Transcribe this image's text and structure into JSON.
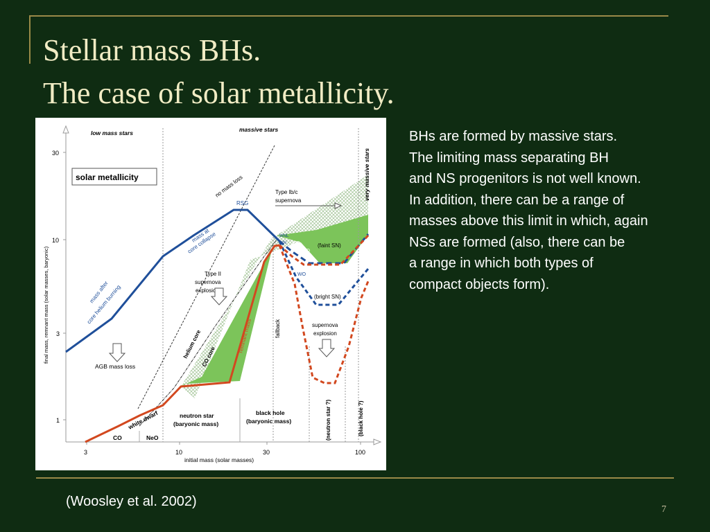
{
  "slide": {
    "title_line1": "Stellar mass BHs.",
    "title_line2": "The case of solar metallicity.",
    "body_lines": [
      "BHs are formed by massive stars.",
      "The limiting mass separating BH",
      "and NS progenitors is not well known.",
      "In addition, there can be a range of",
      "masses above this limit in which, again",
      "NSs are formed (also, there can be",
      "a range in which both types of",
      "compact objects form)."
    ],
    "citation": "(Woosley et al. 2002)",
    "page_number": "7"
  },
  "figure": {
    "region_labels": {
      "low_mass": "low mass stars",
      "massive": "massive stars",
      "very_massive": "very massive stars"
    },
    "legend_box": "solar metallicity",
    "x_axis_label": "initial mass (solar masses)",
    "y_axis_label": "final mass, remnant mass (solar masses, baryonic)",
    "x_ticks": [
      "3",
      "10",
      "30",
      "100"
    ],
    "y_ticks": [
      "1",
      "3",
      "10",
      "30"
    ],
    "curve_labels": {
      "no_mass_loss": "no mass loss",
      "rsg": "RSG",
      "mass_at_core_collapse": [
        "mass at",
        "core collapse"
      ],
      "mass_after_he_burning": [
        "mass after",
        "core helium burning"
      ],
      "helium_core": "helium core",
      "co_core": "CO core",
      "remnant_mass": "remnant mass",
      "white_dwarf": "white dwarf",
      "wnl": "WNL",
      "wn": "WN",
      "wc": "WC",
      "wo_top": "WO",
      "wo_mid": "WO"
    },
    "annotations": {
      "type_ibc": [
        "Type Ib/c",
        "supernova"
      ],
      "type_ii": [
        "Type II",
        "supernova",
        "explosion"
      ],
      "agb_mass_loss": "AGB mass loss",
      "faint_sn": "(faint SN)",
      "bright_sn": "(bright SN)",
      "supernova_explosion": [
        "supernova",
        "explosion"
      ],
      "fallback": "fallback",
      "co": "CO",
      "neo": "NeO",
      "neutron_star": [
        "neutron star",
        "(baryonic mass)"
      ],
      "black_hole": [
        "black hole",
        "(baryonic mass)"
      ],
      "neutron_star_q": "(neutron star ?)",
      "black_hole_q": "(black hole ?)"
    },
    "colors": {
      "blue": "#1f4f9a",
      "orange": "#d2481f",
      "green": "#7cc45a",
      "hatch": "#9bbf8e"
    }
  }
}
